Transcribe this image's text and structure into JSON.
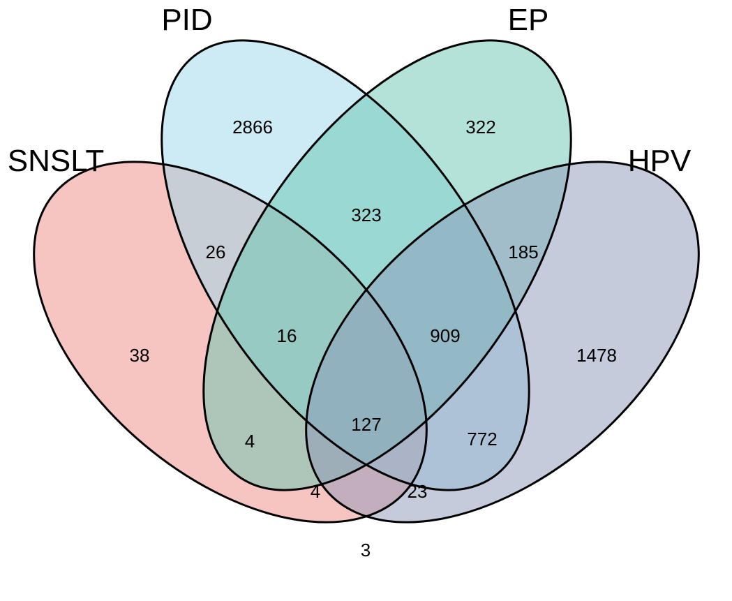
{
  "sets": [
    {
      "id": "snslt",
      "name": "SNSLT",
      "color": "#F08C84"
    },
    {
      "id": "pid",
      "name": "PID",
      "color": "#9AD8EA"
    },
    {
      "id": "ep",
      "name": "EP",
      "color": "#66C6B2"
    },
    {
      "id": "hpv",
      "name": "HPV",
      "color": "#8E98BA"
    }
  ],
  "regions": [
    {
      "sets": [
        "SNSLT"
      ],
      "count": "38"
    },
    {
      "sets": [
        "PID"
      ],
      "count": "2866"
    },
    {
      "sets": [
        "EP"
      ],
      "count": "322"
    },
    {
      "sets": [
        "HPV"
      ],
      "count": "1478"
    },
    {
      "sets": [
        "SNSLT",
        "PID"
      ],
      "count": "26"
    },
    {
      "sets": [
        "PID",
        "EP"
      ],
      "count": "323"
    },
    {
      "sets": [
        "EP",
        "HPV"
      ],
      "count": "185"
    },
    {
      "sets": [
        "SNSLT",
        "PID",
        "EP"
      ],
      "count": "16"
    },
    {
      "sets": [
        "PID",
        "EP",
        "HPV"
      ],
      "count": "909"
    },
    {
      "sets": [
        "SNSLT",
        "EP"
      ],
      "count": "4"
    },
    {
      "sets": [
        "PID",
        "HPV"
      ],
      "count": "772"
    },
    {
      "sets": [
        "SNSLT",
        "PID",
        "EP",
        "HPV"
      ],
      "count": "127"
    },
    {
      "sets": [
        "SNSLT",
        "EP",
        "HPV"
      ],
      "count": "4"
    },
    {
      "sets": [
        "SNSLT",
        "PID",
        "HPV"
      ],
      "count": "23"
    },
    {
      "sets": [
        "SNSLT",
        "HPV"
      ],
      "count": "3"
    }
  ]
}
